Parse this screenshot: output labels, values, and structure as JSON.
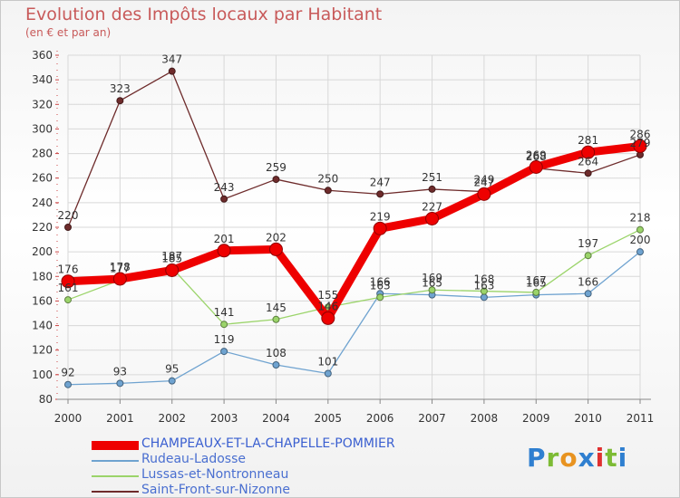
{
  "title": "Evolution des Impôts locaux par Habitant",
  "subtitle": "(en € et par an)",
  "logo": "Proxiti",
  "chart_data": {
    "type": "line",
    "title": "Evolution des Impôts locaux par Habitant",
    "subtitle": "(en € et par an)",
    "xlabel": "",
    "ylabel": "",
    "x": [
      "2000",
      "2001",
      "2002",
      "2003",
      "2004",
      "2005",
      "2006",
      "2007",
      "2008",
      "2009",
      "2010",
      "2011"
    ],
    "ylim": [
      80,
      360
    ],
    "yticks": [
      80,
      100,
      120,
      140,
      160,
      180,
      200,
      220,
      240,
      260,
      280,
      300,
      320,
      340,
      360
    ],
    "grid": true,
    "legend_position": "bottom-left",
    "series": [
      {
        "name": "Saint-Front-sur-Nizonne",
        "color": "#6e2b2b",
        "values": [
          220,
          323,
          347,
          243,
          259,
          250,
          247,
          251,
          249,
          268,
          264,
          279
        ]
      },
      {
        "name": "Rudeau-Ladosse",
        "color": "#6fa3d0",
        "values": [
          92,
          93,
          95,
          119,
          108,
          101,
          166,
          165,
          163,
          165,
          166,
          200
        ]
      },
      {
        "name": "Lussas-et-Nontronneau",
        "color": "#9bd46a",
        "values": [
          161,
          177,
          187,
          141,
          145,
          155,
          163,
          169,
          168,
          167,
          197,
          218
        ]
      },
      {
        "name": "CHAMPEAUX-ET-LA-CHAPELLE-POMMIER",
        "color": "#ee0000",
        "values": [
          176,
          178,
          185,
          201,
          202,
          146,
          219,
          227,
          247,
          269,
          281,
          286
        ]
      }
    ]
  }
}
